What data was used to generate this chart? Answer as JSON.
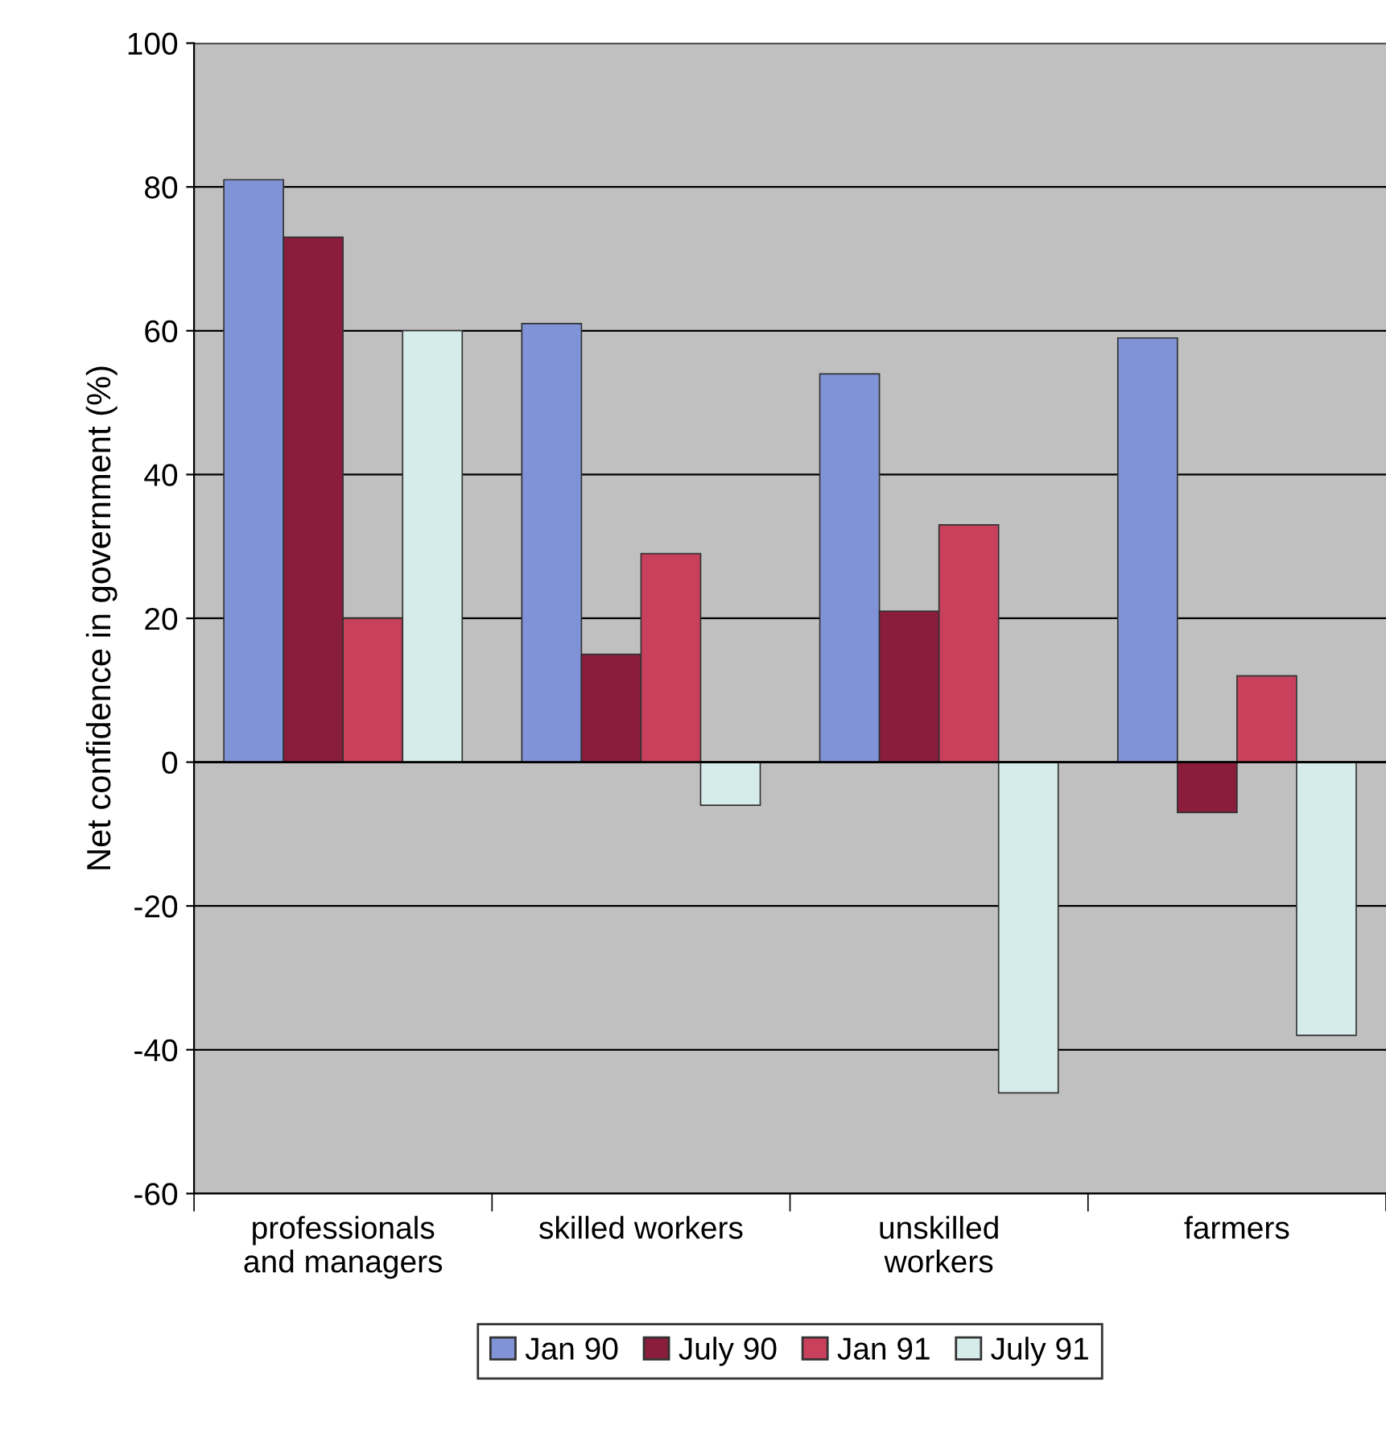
{
  "chart_data": {
    "type": "bar",
    "ylabel": "Net confidence in government (%)",
    "categories": [
      "professionals\nand managers",
      "skilled workers",
      "unskilled\nworkers",
      "farmers"
    ],
    "series": [
      {
        "name": "Jan 90",
        "color": "#7f93d6",
        "values": [
          81,
          61,
          54,
          59
        ]
      },
      {
        "name": "July 90",
        "color": "#8a1c3c",
        "values": [
          73,
          15,
          21,
          -7
        ]
      },
      {
        "name": "Jan 91",
        "color": "#c9405c",
        "values": [
          20,
          29,
          33,
          12
        ]
      },
      {
        "name": "July 91",
        "color": "#d6ecea",
        "values": [
          60,
          -6,
          -46,
          -38
        ]
      }
    ],
    "ylim": [
      -60,
      100
    ],
    "yticks": [
      -60,
      -40,
      -20,
      0,
      20,
      40,
      60,
      80,
      100
    ],
    "grid": "y",
    "legend": "bottom"
  }
}
